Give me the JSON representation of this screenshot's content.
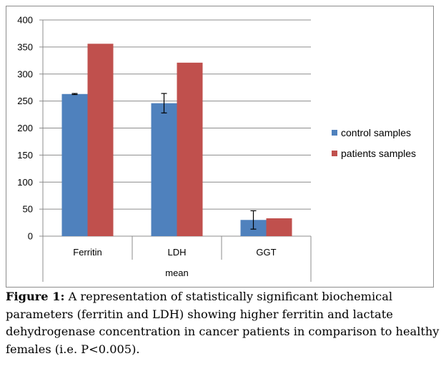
{
  "chart_data": {
    "type": "bar",
    "categories": [
      "Ferritin",
      "LDH",
      "GGT"
    ],
    "group_label": "mean",
    "ylim": [
      0,
      400
    ],
    "yticks": [
      0,
      50,
      100,
      150,
      200,
      250,
      300,
      350,
      400
    ],
    "grid": true,
    "legend_position": "right",
    "series": [
      {
        "name": "control samples",
        "color": "#4f81bd",
        "values": [
          263,
          246,
          30
        ],
        "error": [
          1,
          18,
          17
        ]
      },
      {
        "name": "patients samples",
        "color": "#c0504d",
        "values": [
          356,
          321,
          33
        ],
        "error": [
          null,
          null,
          null
        ]
      }
    ]
  },
  "caption": {
    "label": "Figure 1:",
    "text": " A representation of statistically significant biochemical parameters (ferritin and LDH) showing higher ferritin and lactate dehydrogenase concentration in cancer patients in comparison to healthy females (i.e. P<0.005)."
  }
}
